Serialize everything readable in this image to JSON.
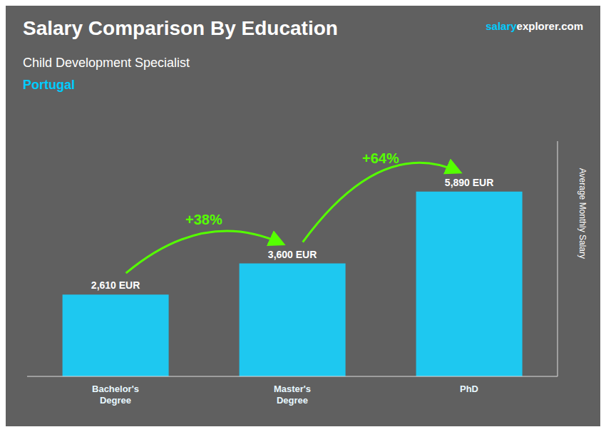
{
  "chart_data": {
    "type": "bar",
    "title": "Salary Comparison By Education",
    "subtitle": "Child Development Specialist",
    "subtitle_2": {
      "text": "Portugal",
      "color": "#00ccff"
    },
    "watermark": [
      {
        "text": "salary",
        "color": "#00ccff"
      },
      {
        "text": "explorer.com",
        "color": "#ffffff"
      }
    ],
    "ylabel": "Average Monthly Salary",
    "categories": [
      "Bachelor's\nDegree",
      "Master's\nDegree",
      "PhD"
    ],
    "values": [
      2610,
      3600,
      5890
    ],
    "value_labels": [
      "2,610 EUR",
      "3,600 EUR",
      "5,890 EUR"
    ],
    "color": "#1ec8f0",
    "annotations": [
      {
        "text": "+38%",
        "color": "#55ff00"
      },
      {
        "text": "+64%",
        "color": "#55ff00"
      }
    ],
    "ylim": [
      0,
      7500
    ],
    "tick_labels": "x",
    "data_labels": true,
    "grid": false
  }
}
